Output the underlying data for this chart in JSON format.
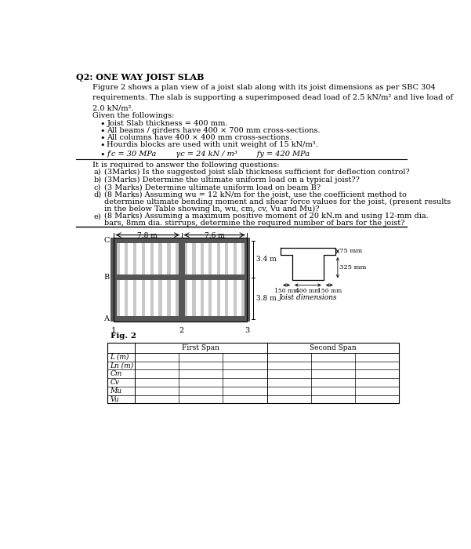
{
  "title": "Q2: ONE WAY JOIST SLAB",
  "bg_color": "#ffffff",
  "paragraph1": "Figure 2 shows a plan view of a joist slab along with its joist dimensions as per SBC 304\nrequirements. The slab is supporting a superimposed dead load of 2.5 kN/m² and live load of\n2.0 kN/m².",
  "given_title": "Given the followings:",
  "bullets": [
    "Joist Slab thickness = 400 mm.",
    "All beams / girders have 400 × 700 mm cross-sections.",
    "All columns have 400 × 400 mm cross-sections.",
    "Hourdis blocks are used with unit weight of 15 kN/m³."
  ],
  "formula_line_parts": [
    [
      "f",
      "’",
      "c",
      " = 30 MPa"
    ],
    [
      "γ",
      "c",
      " = 24 kN / m",
      "³"
    ],
    [
      "f",
      "y",
      " = 420 MPa"
    ]
  ],
  "questions_intro": "It is required to answer the following questions:",
  "questions": [
    "(3Marks) Is the suggested joist slab thickness sufficient for deflection control?",
    "(3Marks) Determine the ultimate uniform load on a typical joist??",
    "(3 Marks) Determine ultimate uniform load on beam B?",
    "(8 Marks) Assuming wu = 12 kN/m for the joist, use the coefficient method to\ndetermine ultimate bending moment and shear force values for the joist, (present results\nin the below Table showing ln, wu, cm, cv, Vu and Mu)?",
    "(8 Marks) Assuming a maximum positive moment of 20 kN.m and using 12-mm dia.\nbars, 8mm dia. stirrups, determine the required number of bars for the joist?"
  ],
  "question_labels": [
    "a)",
    "b)",
    "c)",
    "d)",
    "e)"
  ],
  "fig_label": "Fig. 2",
  "dim_78": "7.8 m",
  "dim_76": "7.6 m",
  "label_C": "C",
  "label_B": "B",
  "label_A": "A",
  "label_1": "1",
  "label_2": "2",
  "label_3": "3",
  "dim_34": "3.4 m",
  "dim_38": "3.8 m",
  "joist_title": "Joist dimensions",
  "joist_75mm": "75 mm",
  "joist_325mm": "325 mm",
  "joist_150mm_left": "150 mm",
  "joist_400mm": "400 mm",
  "joist_150mm_right": "150 mm",
  "table_header_col2": "First Span",
  "table_header_col3": "Second Span",
  "table_rows": [
    "L (m)",
    "Ln (m)",
    "Cm",
    "Cv",
    "Mu",
    "Vu"
  ]
}
